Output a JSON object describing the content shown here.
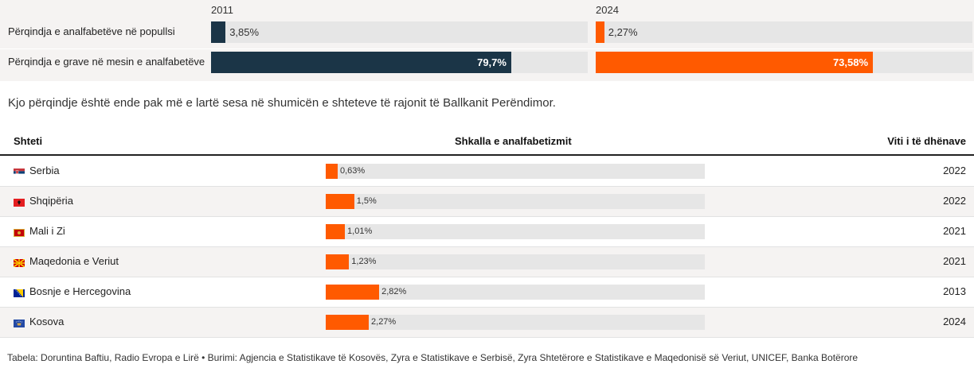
{
  "summary": {
    "years": [
      "2011",
      "2024"
    ],
    "rows": [
      {
        "label": "Përqindja e analfabetëve në popullsi",
        "values": [
          3.85,
          2.27
        ],
        "display": [
          "3,85%",
          "2,27%"
        ]
      },
      {
        "label": "Përqindja e grave në mesin e analfabetëve",
        "values": [
          79.7,
          73.58
        ],
        "display": [
          "79,7%",
          "73,58%"
        ]
      }
    ],
    "colors": {
      "y2011": "#1b3547",
      "y2024": "#ff5a00"
    }
  },
  "intro": "Kjo përqindje është ende pak më e lartë sesa në shumicën e shteteve të rajonit të Ballkanit Perëndimor.",
  "table": {
    "headers": {
      "country": "Shteti",
      "rate": "Shkalla e analfabetizmit",
      "year": "Viti i të dhënave"
    },
    "rows": [
      {
        "country": "Serbia",
        "flag": "flag-serbia-icon",
        "value": 0.63,
        "display": "0,63%",
        "year": "2022"
      },
      {
        "country": "Shqipëria",
        "flag": "flag-albania-icon",
        "value": 1.5,
        "display": "1,5%",
        "year": "2022"
      },
      {
        "country": "Mali i Zi",
        "flag": "flag-montenegro-icon",
        "value": 1.01,
        "display": "1,01%",
        "year": "2021"
      },
      {
        "country": "Maqedonia e Veriut",
        "flag": "flag-north-macedonia-icon",
        "value": 1.23,
        "display": "1,23%",
        "year": "2021"
      },
      {
        "country": "Bosnje e Hercegovina",
        "flag": "flag-bosnia-icon",
        "value": 2.82,
        "display": "2,82%",
        "year": "2013"
      },
      {
        "country": "Kosova",
        "flag": "flag-kosovo-icon",
        "value": 2.27,
        "display": "2,27%",
        "year": "2024"
      }
    ],
    "bar_color": "#ff5a00"
  },
  "footer": "Tabela: Doruntina Baftiu, Radio Evropa e Lirë • Burimi: Agjencia e Statistikave të Kosovës, Zyra e Statistikave e Serbisë, Zyra Shtetërore e Statistikave e Maqedonisë së Veriut, UNICEF, Banka Botërore",
  "chart_data": [
    {
      "type": "bar",
      "categories": [
        "Përqindja e analfabetëve në popullsi",
        "Përqindja e grave në mesin e analfabetëve"
      ],
      "series": [
        {
          "name": "2011",
          "values": [
            3.85,
            79.7
          ]
        },
        {
          "name": "2024",
          "values": [
            2.27,
            73.58
          ]
        }
      ],
      "ylim": [
        0,
        100
      ]
    },
    {
      "type": "table",
      "categories": [
        "Serbia",
        "Shqipëria",
        "Mali i Zi",
        "Maqedonia e Veriut",
        "Bosnje e Hercegovina",
        "Kosova"
      ],
      "values": [
        0.63,
        1.5,
        1.01,
        1.23,
        2.82,
        2.27
      ],
      "years": [
        "2022",
        "2022",
        "2021",
        "2021",
        "2013",
        "2024"
      ],
      "ylim": [
        0,
        20
      ]
    }
  ]
}
